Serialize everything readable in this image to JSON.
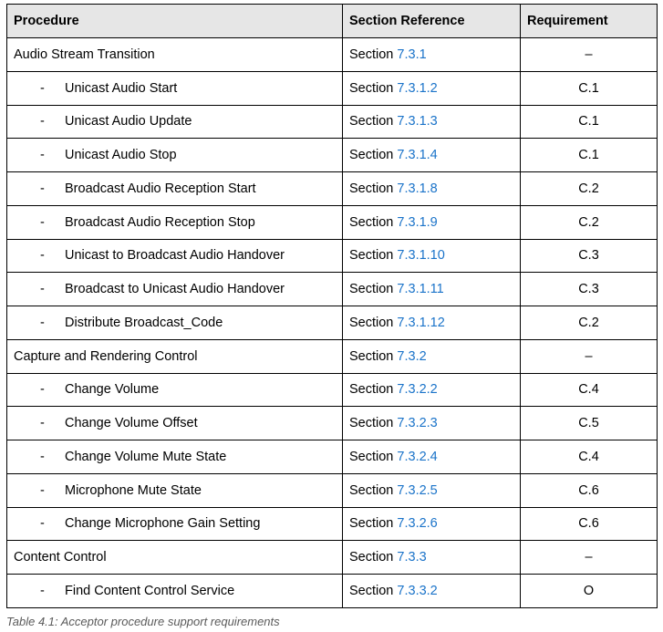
{
  "table": {
    "headers": {
      "procedure": "Procedure",
      "section": "Section Reference",
      "requirement": "Requirement"
    },
    "section_prefix": "Section",
    "rows": [
      {
        "dash": "",
        "procedure": "Audio Stream Transition",
        "section_ref": "7.3.1",
        "requirement": "–"
      },
      {
        "dash": "-",
        "procedure": "Unicast Audio Start",
        "section_ref": "7.3.1.2",
        "requirement": "C.1"
      },
      {
        "dash": "-",
        "procedure": "Unicast Audio Update",
        "section_ref": "7.3.1.3",
        "requirement": "C.1"
      },
      {
        "dash": "-",
        "procedure": "Unicast Audio Stop",
        "section_ref": "7.3.1.4",
        "requirement": "C.1"
      },
      {
        "dash": "-",
        "procedure": "Broadcast Audio Reception Start",
        "section_ref": "7.3.1.8",
        "requirement": "C.2"
      },
      {
        "dash": "-",
        "procedure": "Broadcast Audio Reception Stop",
        "section_ref": "7.3.1.9",
        "requirement": "C.2"
      },
      {
        "dash": "-",
        "procedure": "Unicast to Broadcast Audio Handover",
        "section_ref": "7.3.1.10",
        "requirement": "C.3"
      },
      {
        "dash": "-",
        "procedure": "Broadcast to Unicast Audio Handover",
        "section_ref": "7.3.1.11",
        "requirement": "C.3"
      },
      {
        "dash": "-",
        "procedure": "Distribute Broadcast_Code",
        "section_ref": "7.3.1.12",
        "requirement": "C.2"
      },
      {
        "dash": "",
        "procedure": "Capture and Rendering Control",
        "section_ref": "7.3.2",
        "requirement": "–"
      },
      {
        "dash": "-",
        "procedure": "Change Volume",
        "section_ref": "7.3.2.2",
        "requirement": "C.4"
      },
      {
        "dash": "-",
        "procedure": "Change Volume Offset",
        "section_ref": "7.3.2.3",
        "requirement": "C.5"
      },
      {
        "dash": "-",
        "procedure": "Change Volume Mute State",
        "section_ref": "7.3.2.4",
        "requirement": "C.4"
      },
      {
        "dash": "-",
        "procedure": "Microphone Mute State",
        "section_ref": "7.3.2.5",
        "requirement": "C.6"
      },
      {
        "dash": "-",
        "procedure": "Change Microphone Gain Setting",
        "section_ref": "7.3.2.6",
        "requirement": "C.6"
      },
      {
        "dash": "",
        "procedure": "Content Control",
        "section_ref": "7.3.3",
        "requirement": "–"
      },
      {
        "dash": "-",
        "procedure": "Find Content Control Service",
        "section_ref": "7.3.3.2",
        "requirement": "O"
      }
    ]
  },
  "caption": "Table 4.1: Acceptor procedure support requirements",
  "colors": {
    "link": "#1a73c9",
    "header_bg": "#e6e6e6",
    "caption": "#5a5a5a"
  }
}
